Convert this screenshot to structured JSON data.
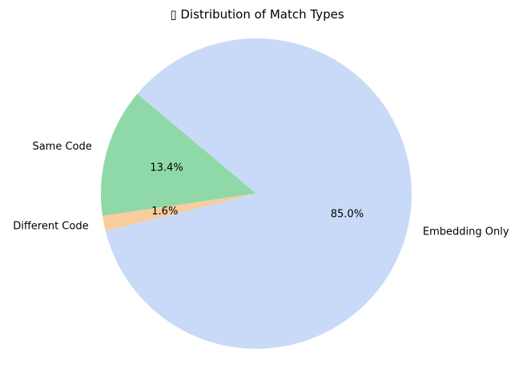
{
  "chart_data": {
    "type": "pie",
    "title": "▯ Distribution of Match Types",
    "start_angle_deg": 140,
    "direction": "counterclockwise",
    "slices": [
      {
        "label": "Same Code",
        "value": 13.4,
        "pct_label": "13.4%",
        "color": "#8fd9a8"
      },
      {
        "label": "Different Code",
        "value": 1.6,
        "pct_label": "1.6%",
        "color": "#f9cc9d"
      },
      {
        "label": "Embedding Only",
        "value": 85.0,
        "pct_label": "85.0%",
        "color": "#c9daf8"
      }
    ]
  }
}
